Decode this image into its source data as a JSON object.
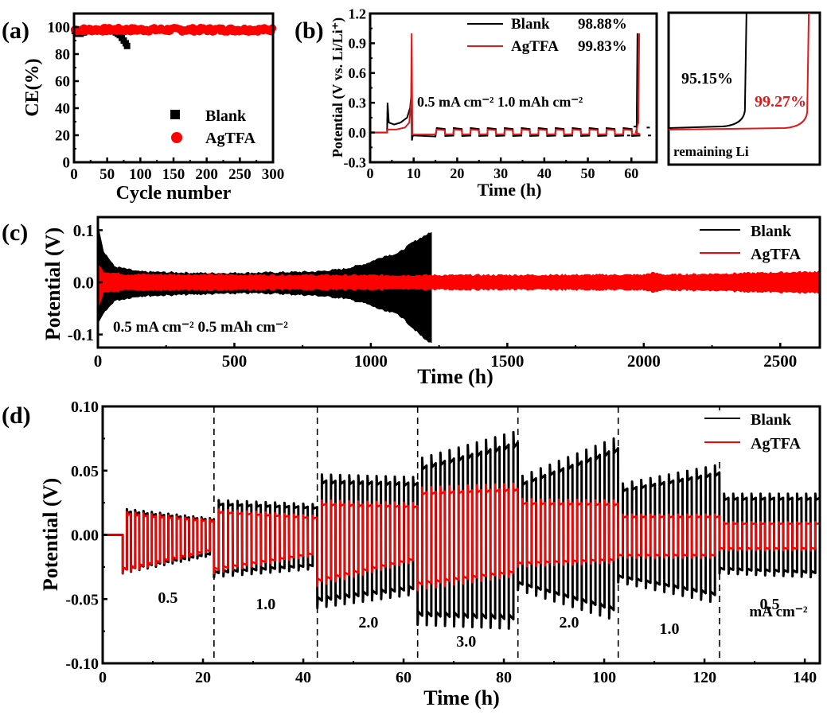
{
  "chart_data": [
    {
      "id": "a",
      "panel_label": "(a)",
      "type": "scatter",
      "title": "",
      "xlabel": "Cycle number",
      "ylabel": "CE(%)",
      "xlim": [
        0,
        300
      ],
      "ylim": [
        0,
        110
      ],
      "xticks": [
        0,
        50,
        100,
        150,
        200,
        250,
        300
      ],
      "yticks": [
        0,
        20,
        40,
        60,
        80,
        100
      ],
      "legend": {
        "position": "bottom-right",
        "entries": [
          {
            "name": "Blank",
            "marker": "square",
            "color": "#000000"
          },
          {
            "name": "AgTFA",
            "marker": "circle",
            "color": "#ff0000"
          }
        ]
      },
      "series": [
        {
          "name": "Blank",
          "color": "#000000",
          "marker": "square",
          "x": [
            1,
            5,
            10,
            15,
            20,
            25,
            30,
            35,
            40,
            45,
            50,
            55,
            60,
            63,
            66,
            69,
            72,
            75,
            78,
            80
          ],
          "y": [
            97,
            95,
            95,
            96,
            97,
            97,
            98,
            98,
            98,
            98,
            98,
            97,
            97,
            96,
            95,
            94,
            92,
            90,
            88,
            86
          ]
        },
        {
          "name": "AgTFA",
          "color": "#ff0000",
          "marker": "circle",
          "x_range": [
            1,
            300
          ],
          "y_mean": 98,
          "y_jitter": 1.5
        }
      ]
    },
    {
      "id": "b",
      "panel_label": "(b)",
      "type": "line",
      "xlabel": "Time (h)",
      "ylabel": "Potential (V vs. Li/Li⁺)",
      "xlim": [
        0,
        65.8
      ],
      "ylim": [
        -0.3,
        1.2
      ],
      "xticks": [
        0,
        10,
        20,
        30,
        40,
        50,
        60
      ],
      "yticks": [
        -0.3,
        0.0,
        0.3,
        0.6,
        0.9,
        1.2
      ],
      "ytick_labels": [
        "-0.3",
        "0.0",
        "0.3",
        "0.6",
        "0.9",
        "1.2"
      ],
      "annotation": "0.5 mA cm⁻² 1.0 mAh cm⁻²",
      "legend": {
        "position": "top-right",
        "entries": [
          {
            "name": "Blank",
            "value": "98.88%",
            "color": "#000000"
          },
          {
            "name": "AgTFA",
            "value": "99.83%",
            "color": "#e0191b"
          }
        ]
      },
      "series": [
        {
          "name": "Blank",
          "color": "#000000",
          "points": [
            [
              0,
              0
            ],
            [
              3.9,
              0
            ],
            [
              4.0,
              0.3
            ],
            [
              4.3,
              0.1
            ],
            [
              5.5,
              0.08
            ],
            [
              7,
              0.1
            ],
            [
              8.5,
              0.15
            ],
            [
              9.2,
              0.25
            ],
            [
              9.5,
              0.4
            ],
            [
              9.6,
              -0.08
            ],
            [
              9.8,
              -0.03
            ],
            [
              15,
              -0.04
            ]
          ],
          "cycling": {
            "start": 15.3,
            "end": 61.2,
            "period": 3.9,
            "high": 0.045,
            "low": -0.035
          },
          "final": [
            [
              61.2,
              -0.02
            ],
            [
              61.4,
              1.0
            ]
          ]
        },
        {
          "name": "AgTFA",
          "color": "#e0191b",
          "points": [
            [
              0,
              0
            ],
            [
              3.9,
              0
            ],
            [
              4.0,
              0.03
            ],
            [
              6,
              0.03
            ],
            [
              8,
              0.05
            ],
            [
              9.0,
              0.1
            ],
            [
              9.4,
              0.3
            ],
            [
              9.55,
              1.0
            ],
            [
              9.7,
              -0.02
            ],
            [
              15,
              -0.02
            ]
          ],
          "cycling": {
            "start": 15.3,
            "end": 61.2,
            "period": 3.9,
            "high": 0.03,
            "low": -0.02
          },
          "final": [
            [
              61.0,
              0.0
            ],
            [
              61.6,
              0.1
            ],
            [
              61.8,
              1.0
            ]
          ]
        }
      ]
    },
    {
      "id": "b-inset",
      "type": "line",
      "label": "remaining Li",
      "annotations": [
        {
          "text": "95.15%",
          "color": "#000000"
        },
        {
          "text": "99.27%",
          "color": "#e0191b"
        }
      ],
      "series": [
        {
          "name": "Blank",
          "color": "#000000",
          "knee_fraction": 0.9515
        },
        {
          "name": "AgTFA",
          "color": "#e0191b",
          "knee_fraction": 0.9927
        }
      ]
    },
    {
      "id": "c",
      "panel_label": "(c)",
      "type": "area",
      "xlabel": "Time (h)",
      "ylabel": "Potential (V)",
      "xlim": [
        0,
        2645
      ],
      "ylim": [
        -0.125,
        0.125
      ],
      "xticks": [
        0,
        500,
        1000,
        1500,
        2000,
        2500
      ],
      "yticks": [
        -0.1,
        0.0,
        0.1
      ],
      "ytick_labels": [
        "-0.1",
        "0.0",
        "0.1"
      ],
      "annotation": "0.5 mA cm⁻²   0.5 mAh cm⁻²",
      "legend": {
        "position": "top-right",
        "entries": [
          {
            "name": "Blank",
            "color": "#000000"
          },
          {
            "name": "AgTFA",
            "color": "#ff0000"
          }
        ]
      },
      "series": [
        {
          "name": "Blank",
          "color": "#000000",
          "envelope": [
            [
              0,
              0.11,
              -0.08
            ],
            [
              20,
              0.06,
              -0.06
            ],
            [
              60,
              0.03,
              -0.035
            ],
            [
              150,
              0.02,
              -0.026
            ],
            [
              400,
              0.017,
              -0.022
            ],
            [
              600,
              0.018,
              -0.02
            ],
            [
              800,
              0.02,
              -0.025
            ],
            [
              900,
              0.025,
              -0.03
            ],
            [
              980,
              0.035,
              -0.04
            ],
            [
              1050,
              0.05,
              -0.055
            ],
            [
              1100,
              0.055,
              -0.06
            ],
            [
              1150,
              0.075,
              -0.085
            ],
            [
              1200,
              0.09,
              -0.11
            ],
            [
              1222,
              0.095,
              -0.115
            ]
          ]
        },
        {
          "name": "AgTFA",
          "color": "#ff0000",
          "envelope": [
            [
              0,
              0.035,
              -0.05
            ],
            [
              20,
              0.02,
              -0.02
            ],
            [
              100,
              0.015,
              -0.015
            ],
            [
              1000,
              0.013,
              -0.013
            ],
            [
              2000,
              0.014,
              -0.014
            ],
            [
              2030,
              0.018,
              -0.018
            ],
            [
              2080,
              0.014,
              -0.014
            ],
            [
              2645,
              0.02,
              -0.02
            ]
          ]
        }
      ]
    },
    {
      "id": "d",
      "panel_label": "(d)",
      "type": "line",
      "xlabel": "Time (h)",
      "ylabel": "Potential (V)",
      "xlim": [
        0,
        143
      ],
      "ylim": [
        -0.1,
        0.1
      ],
      "xticks": [
        0,
        20,
        40,
        60,
        80,
        100,
        120,
        140
      ],
      "yticks": [
        -0.1,
        -0.05,
        0.0,
        0.05,
        0.1
      ],
      "ytick_labels": [
        "-0.10",
        "-0.05",
        "0.00",
        "0.05",
        "0.10"
      ],
      "segment_boundaries": [
        22.2,
        42.8,
        62.8,
        82.8,
        102.8,
        123.0
      ],
      "segment_labels": [
        "0.5",
        "1.0",
        "2.0",
        "3.0",
        "2.0",
        "1.0",
        "0.5"
      ],
      "unit_label": "mA cm⁻²",
      "legend": {
        "position": "top-right",
        "entries": [
          {
            "name": "Blank",
            "color": "#000000"
          },
          {
            "name": "AgTFA",
            "color": "#ff0000"
          }
        ]
      },
      "segments": [
        {
          "current": 0.5,
          "start": 4.0,
          "end": 22.2,
          "cycles": 11,
          "blank": [
            0.02,
            0.013,
            -0.03,
            -0.017
          ],
          "agtfa": [
            0.018,
            0.012,
            -0.03,
            -0.014
          ]
        },
        {
          "current": 1.0,
          "start": 22.2,
          "end": 42.8,
          "cycles": 11,
          "blank": [
            0.027,
            0.024,
            -0.033,
            -0.027
          ],
          "agtfa": [
            0.02,
            0.015,
            -0.03,
            -0.017
          ]
        },
        {
          "current": 2.0,
          "start": 42.8,
          "end": 62.8,
          "cycles": 11,
          "blank": [
            0.047,
            0.045,
            -0.057,
            -0.047
          ],
          "agtfa": [
            0.027,
            0.025,
            -0.04,
            -0.022
          ]
        },
        {
          "current": 3.0,
          "start": 62.8,
          "end": 82.8,
          "cycles": 11,
          "blank": [
            0.06,
            0.08,
            -0.07,
            -0.073
          ],
          "agtfa": [
            0.037,
            0.04,
            -0.043,
            -0.033
          ]
        },
        {
          "current": 2.0,
          "start": 82.8,
          "end": 102.8,
          "cycles": 11,
          "blank": [
            0.046,
            0.075,
            -0.043,
            -0.065
          ],
          "agtfa": [
            0.028,
            0.027,
            -0.025,
            -0.022
          ]
        },
        {
          "current": 1.0,
          "start": 102.8,
          "end": 123.0,
          "cycles": 11,
          "blank": [
            0.04,
            0.054,
            -0.037,
            -0.052
          ],
          "agtfa": [
            0.016,
            0.016,
            -0.018,
            -0.018
          ]
        },
        {
          "current": 0.5,
          "start": 123.0,
          "end": 143.0,
          "cycles": 11,
          "blank": [
            0.032,
            0.032,
            -0.03,
            -0.033
          ],
          "agtfa": [
            0.01,
            0.01,
            -0.012,
            -0.012
          ]
        }
      ]
    }
  ]
}
